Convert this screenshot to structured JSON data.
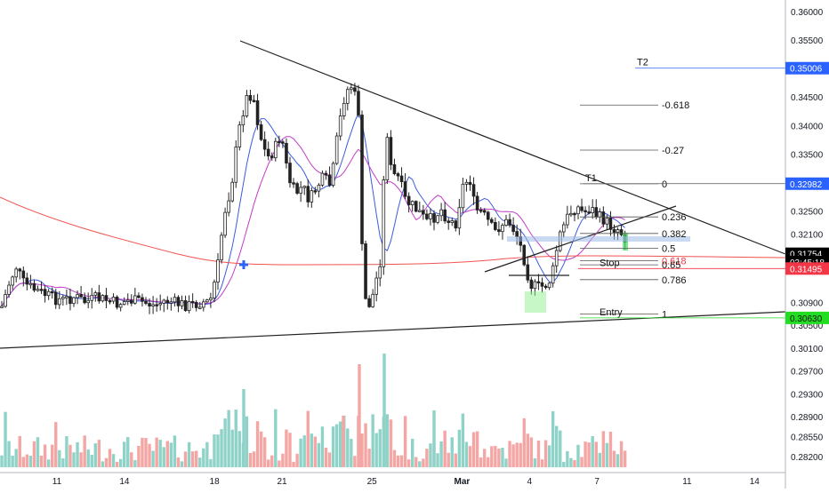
{
  "chart_data": {
    "type": "candlestick",
    "y_axis": {
      "range": [
        0.2795,
        0.3625
      ],
      "ticks": [
        "0.36000",
        "0.35500",
        "0.35000",
        "0.34500",
        "0.34000",
        "0.33500",
        "0.33000",
        "0.32500",
        "0.32100",
        "0.31754",
        "0.30900",
        "0.30500",
        "0.30100",
        "0.29700",
        "0.29300",
        "0.28900",
        "0.28550",
        "0.28200"
      ]
    },
    "x_axis": {
      "ticks": [
        {
          "label": "11",
          "day": 11
        },
        {
          "label": "14",
          "day": 14
        },
        {
          "label": "18",
          "day": 18
        },
        {
          "label": "21",
          "day": 21
        },
        {
          "label": "25",
          "day": 25
        },
        {
          "label": "Mar",
          "day": 29
        },
        {
          "label": "4",
          "day": 32
        },
        {
          "label": "7",
          "day": 35
        },
        {
          "label": "11",
          "day": 39
        },
        {
          "label": "14",
          "day": 42
        }
      ]
    },
    "colors": {
      "up": "#26a69a",
      "down": "#ef5350",
      "volume_up": "#8fd3c8",
      "volume_down": "#f4a6a4",
      "ma_blue": "#3b5bdb",
      "ma_purple": "#c23cc7",
      "ma_red": "#ef5350",
      "fib_line": "#555555",
      "price_label": "#000000",
      "t1_label": "#2962ff",
      "stop_label": "#f23645",
      "entry_label": "#22dd22"
    },
    "price_labels": [
      {
        "text": "0.35006",
        "price": 0.35006,
        "color": "#2962ff"
      },
      {
        "text": "0.32982",
        "price": 0.32982,
        "color": "#2962ff"
      },
      {
        "text": "0.31754",
        "price": 0.31754,
        "color": "#000000"
      },
      {
        "text": "03:45:18",
        "price": 0.3161,
        "color": "#ffffff"
      },
      {
        "text": "0.31495",
        "price": 0.31495,
        "color": "#f23645"
      },
      {
        "text": "0.30630",
        "price": 0.3063,
        "color": "#22dd22"
      }
    ],
    "annotations": {
      "T2": "T2",
      "T1": "T1",
      "Stop": "Stop",
      "Entry": "Entry"
    },
    "fib_levels": [
      {
        "label": "-0.618",
        "price": 0.3436
      },
      {
        "label": "-0.27",
        "price": 0.3357
      },
      {
        "label": "0",
        "price": 0.3298
      },
      {
        "label": "0.236",
        "price": 0.324
      },
      {
        "label": "0.382",
        "price": 0.3211
      },
      {
        "label": "0.5",
        "price": 0.3185
      },
      {
        "label": "0.618",
        "price": 0.3163
      },
      {
        "label": "0.65",
        "price": 0.3156
      },
      {
        "label": "0.786",
        "price": 0.313
      },
      {
        "label": "1",
        "price": 0.307
      }
    ]
  }
}
